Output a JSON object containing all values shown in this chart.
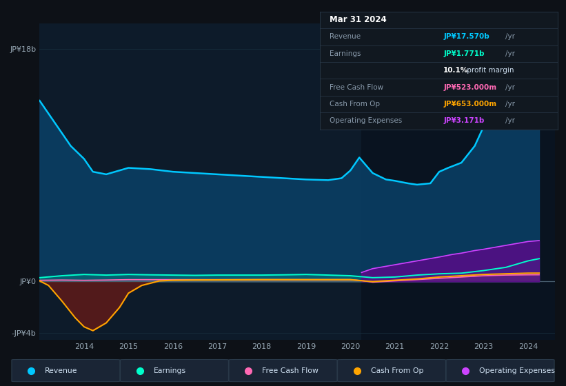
{
  "bg_color": "#0d1117",
  "chart_bg": "#0d1b2a",
  "chart_bg_right": "#060d18",
  "grid_color": "#1a3040",
  "ylim": [
    -4500000000.0,
    20000000000.0
  ],
  "x_lim": [
    2013.0,
    2024.6
  ],
  "x_ticks": [
    2014,
    2015,
    2016,
    2017,
    2018,
    2019,
    2020,
    2021,
    2022,
    2023,
    2024
  ],
  "legend": [
    {
      "label": "Revenue",
      "color": "#00c8ff"
    },
    {
      "label": "Earnings",
      "color": "#00ffcc"
    },
    {
      "label": "Free Cash Flow",
      "color": "#ff69b4"
    },
    {
      "label": "Cash From Op",
      "color": "#ffa500"
    },
    {
      "label": "Operating Expenses",
      "color": "#cc44ff"
    }
  ],
  "revenue": {
    "x": [
      2013.0,
      2013.3,
      2013.7,
      2014.0,
      2014.2,
      2014.5,
      2014.8,
      2015.0,
      2015.5,
      2016.0,
      2016.5,
      2017.0,
      2017.5,
      2018.0,
      2018.5,
      2019.0,
      2019.5,
      2019.8,
      2020.0,
      2020.2,
      2020.5,
      2020.8,
      2021.0,
      2021.3,
      2021.5,
      2021.8,
      2022.0,
      2022.2,
      2022.5,
      2022.8,
      2023.0,
      2023.3,
      2023.6,
      2023.9,
      2024.0,
      2024.25
    ],
    "y": [
      14000000000.0,
      12500000000.0,
      10500000000.0,
      9500000000.0,
      8500000000.0,
      8300000000.0,
      8600000000.0,
      8800000000.0,
      8700000000.0,
      8500000000.0,
      8400000000.0,
      8300000000.0,
      8200000000.0,
      8100000000.0,
      8000000000.0,
      7900000000.0,
      7850000000.0,
      8000000000.0,
      8600000000.0,
      9600000000.0,
      8400000000.0,
      7900000000.0,
      7800000000.0,
      7600000000.0,
      7500000000.0,
      7600000000.0,
      8500000000.0,
      8800000000.0,
      9200000000.0,
      10500000000.0,
      12000000000.0,
      13500000000.0,
      15000000000.0,
      16500000000.0,
      17200000000.0,
      17570000000.0
    ]
  },
  "earnings": {
    "x": [
      2013.0,
      2013.5,
      2014.0,
      2014.5,
      2015.0,
      2015.5,
      2016.0,
      2016.5,
      2017.0,
      2017.5,
      2018.0,
      2018.5,
      2019.0,
      2019.5,
      2020.0,
      2020.5,
      2021.0,
      2021.5,
      2022.0,
      2022.5,
      2023.0,
      2023.5,
      2024.0,
      2024.25
    ],
    "y": [
      300000000.0,
      450000000.0,
      550000000.0,
      500000000.0,
      550000000.0,
      520000000.0,
      500000000.0,
      480000000.0,
      500000000.0,
      500000000.0,
      500000000.0,
      520000000.0,
      550000000.0,
      500000000.0,
      450000000.0,
      300000000.0,
      350000000.0,
      500000000.0,
      600000000.0,
      650000000.0,
      850000000.0,
      1100000000.0,
      1600000000.0,
      1771000000.0
    ]
  },
  "fcf": {
    "x": [
      2013.0,
      2013.5,
      2014.0,
      2014.5,
      2015.0,
      2015.5,
      2016.0,
      2016.5,
      2017.0,
      2017.5,
      2018.0,
      2018.5,
      2019.0,
      2019.5,
      2020.0,
      2020.3,
      2020.5,
      2021.0,
      2021.5,
      2022.0,
      2022.5,
      2023.0,
      2023.5,
      2024.0,
      2024.25
    ],
    "y": [
      100000000.0,
      120000000.0,
      100000000.0,
      120000000.0,
      150000000.0,
      150000000.0,
      150000000.0,
      150000000.0,
      150000000.0,
      150000000.0,
      150000000.0,
      150000000.0,
      150000000.0,
      150000000.0,
      150000000.0,
      50000000.0,
      -50000000.0,
      50000000.0,
      150000000.0,
      250000000.0,
      350000000.0,
      450000000.0,
      500000000.0,
      520000000.0,
      523000000.0
    ]
  },
  "cashop": {
    "x": [
      2013.0,
      2013.2,
      2013.5,
      2013.8,
      2014.0,
      2014.2,
      2014.5,
      2014.8,
      2015.0,
      2015.3,
      2015.7,
      2016.0,
      2016.5,
      2017.0,
      2017.5,
      2018.0,
      2018.5,
      2019.0,
      2019.5,
      2020.0,
      2020.3,
      2020.5,
      2021.0,
      2021.5,
      2022.0,
      2022.5,
      2023.0,
      2023.5,
      2024.0,
      2024.25
    ],
    "y": [
      50000000.0,
      -300000000.0,
      -1500000000.0,
      -2800000000.0,
      -3500000000.0,
      -3800000000.0,
      -3200000000.0,
      -2000000000.0,
      -900000000.0,
      -300000000.0,
      50000000.0,
      100000000.0,
      120000000.0,
      130000000.0,
      140000000.0,
      150000000.0,
      150000000.0,
      150000000.0,
      150000000.0,
      150000000.0,
      50000000.0,
      0.0,
      100000000.0,
      200000000.0,
      350000000.0,
      450000000.0,
      550000000.0,
      600000000.0,
      650000000.0,
      653000000.0
    ]
  },
  "opex": {
    "x": [
      2020.25,
      2020.5,
      2021.0,
      2021.5,
      2022.0,
      2022.3,
      2022.5,
      2022.8,
      2023.0,
      2023.5,
      2024.0,
      2024.25
    ],
    "y": [
      700000000.0,
      1000000000.0,
      1300000000.0,
      1600000000.0,
      1900000000.0,
      2100000000.0,
      2200000000.0,
      2400000000.0,
      2500000000.0,
      2800000000.0,
      3100000000.0,
      3171000000.0
    ]
  },
  "info_rows": [
    {
      "label": "Mar 31 2024",
      "value": null,
      "unit": null,
      "val_color": "#ffffff",
      "is_title": true
    },
    {
      "label": "Revenue",
      "value": "JP¥17.570b",
      "unit": "/yr",
      "val_color": "#00c8ff",
      "is_title": false
    },
    {
      "label": "Earnings",
      "value": "JP¥1.771b",
      "unit": "/yr",
      "val_color": "#00ffcc",
      "is_title": false
    },
    {
      "label": "",
      "value": "10.1%",
      "unit": " profit margin",
      "val_color": "#ffffff",
      "is_title": false
    },
    {
      "label": "Free Cash Flow",
      "value": "JP¥523.000m",
      "unit": "/yr",
      "val_color": "#ff69b4",
      "is_title": false
    },
    {
      "label": "Cash From Op",
      "value": "JP¥653.000m",
      "unit": "/yr",
      "val_color": "#ffa500",
      "is_title": false
    },
    {
      "label": "Operating Expenses",
      "value": "JP¥3.171b",
      "unit": "/yr",
      "val_color": "#cc44ff",
      "is_title": false
    }
  ]
}
